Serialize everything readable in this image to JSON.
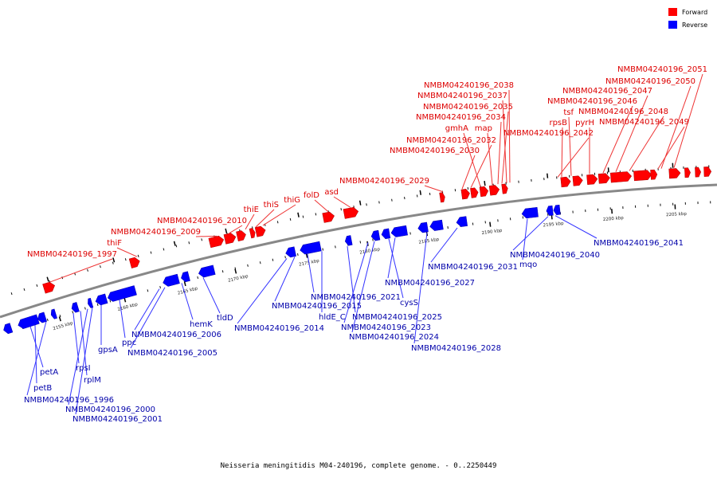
{
  "legend": {
    "forward_label": "Forward",
    "reverse_label": "Reverse",
    "forward_color": "#ff0000",
    "reverse_color": "#0000ff"
  },
  "caption": "Neisseria meningitidis M04-240196, complete genome. - 0..2250449",
  "colors": {
    "forward_text": "#dd0000",
    "reverse_text": "#0000aa",
    "backbone": "#888888",
    "leader_forward": "#ee3333",
    "leader_reverse": "#3333ff"
  },
  "ticks": [
    "2155 kbp",
    "2160 kbp",
    "2165 kbp",
    "2170 kbp",
    "2175 kbp",
    "2180 kbp",
    "2185 kbp",
    "2190 kbp",
    "2195 kbp",
    "2200 kbp",
    "2205 kbp"
  ],
  "forward_labels": [
    "NMBM04240196_1997",
    "thiF",
    "NMBM04240196_2009",
    "NMBM04240196_2010",
    "thiE",
    "thiS",
    "thiG",
    "folD",
    "asd",
    "NMBM04240196_2029",
    "NMBM04240196_2030",
    "NMBM04240196_2032",
    "gmhA",
    "map",
    "NMBM04240196_2034",
    "NMBM04240196_2035",
    "NMBM04240196_2037",
    "NMBM04240196_2038",
    "NMBM04240196_2042",
    "rpsB",
    "tsf",
    "pyrH",
    "NMBM04240196_2046",
    "NMBM04240196_2047",
    "NMBM04240196_2048",
    "NMBM04240196_2049",
    "NMBM04240196_2050",
    "NMBM04240196_2051"
  ],
  "reverse_labels": [
    "petA",
    "petB",
    "NMBM04240196_1996",
    "rpsI",
    "rplM",
    "NMBM04240196_2000",
    "NMBM04240196_2001",
    "gpsA",
    "ppc",
    "NMBM04240196_2006",
    "NMBM04240196_2005",
    "hemK",
    "tldD",
    "NMBM04240196_2014",
    "NMBM04240196_2015",
    "NMBM04240196_2021",
    "hldE_C",
    "NMBM04240196_2025",
    "NMBM04240196_2023",
    "NMBM04240196_2024",
    "cysS",
    "NMBM04240196_2027",
    "NMBM04240196_2028",
    "NMBM04240196_2031",
    "mqo",
    "NMBM04240196_2040",
    "NMBM04240196_2041"
  ]
}
